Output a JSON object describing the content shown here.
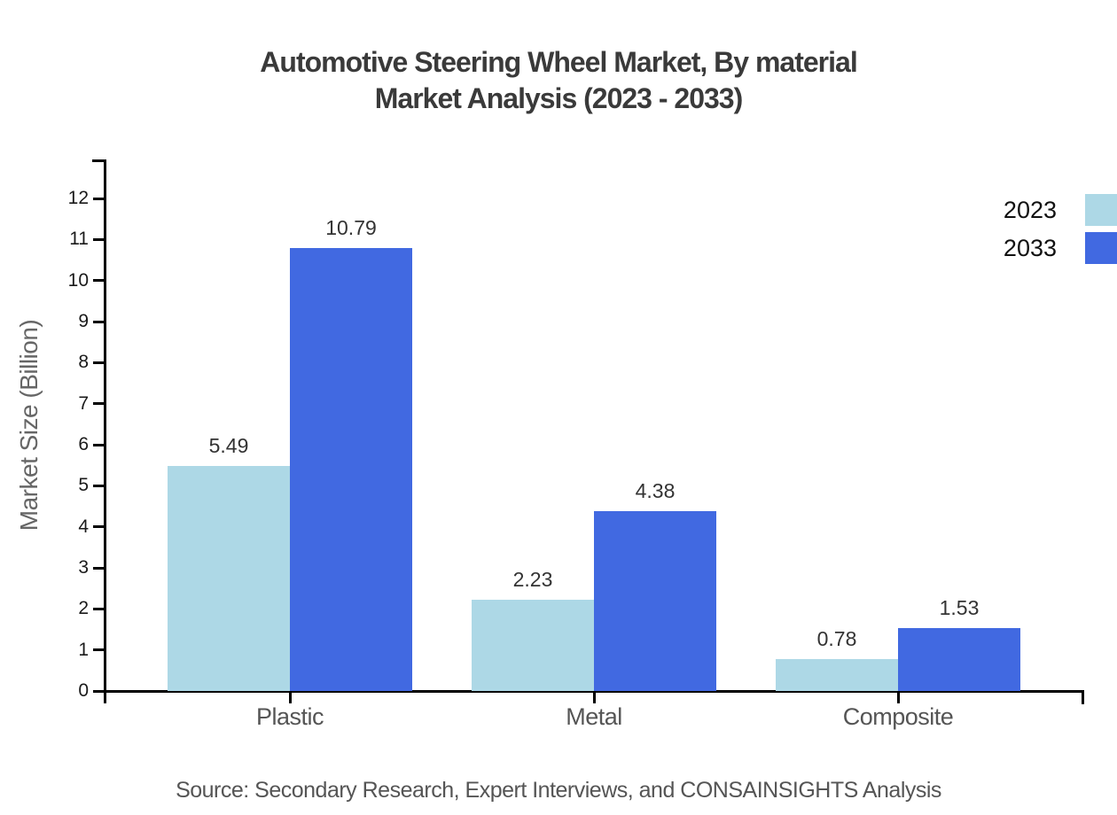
{
  "title": {
    "line1": "Automotive Steering Wheel Market, By material",
    "line2": "Market Analysis (2023 - 2033)"
  },
  "source_note": "Source: Secondary Research, Expert Interviews, and CONSAINSIGHTS Analysis",
  "chart_data": {
    "type": "bar",
    "title": "Automotive Steering Wheel Market, By material Market Analysis (2023 - 2033)",
    "categories": [
      "Plastic",
      "Metal",
      "Composite"
    ],
    "series": [
      {
        "name": "2023",
        "color": "#ADD8E6",
        "values": [
          5.49,
          2.23,
          0.78
        ]
      },
      {
        "name": "2033",
        "color": "#4169E1",
        "values": [
          10.79,
          4.38,
          1.53
        ]
      }
    ],
    "value_labels": {
      "Plastic": {
        "2023": "5.49",
        "2033": "10.79"
      },
      "Metal": {
        "2023": "2.23",
        "2033": "4.38"
      },
      "Composite": {
        "2023": "0.78",
        "2033": "1.53"
      }
    },
    "xlabel": "",
    "ylabel": "Market Size (Billion)",
    "ylim": [
      0,
      13
    ],
    "yticks": [
      0,
      1,
      2,
      3,
      4,
      5,
      6,
      7,
      8,
      9,
      10,
      11,
      12
    ],
    "grid": false,
    "legend_position": "top-right",
    "colors": {
      "axis": "#000000",
      "tick_label": "#1a1a1a",
      "category_label": "#555555",
      "value_label": "#333333",
      "title": "#3a3a3a",
      "source": "#555555",
      "background": "#ffffff"
    }
  }
}
